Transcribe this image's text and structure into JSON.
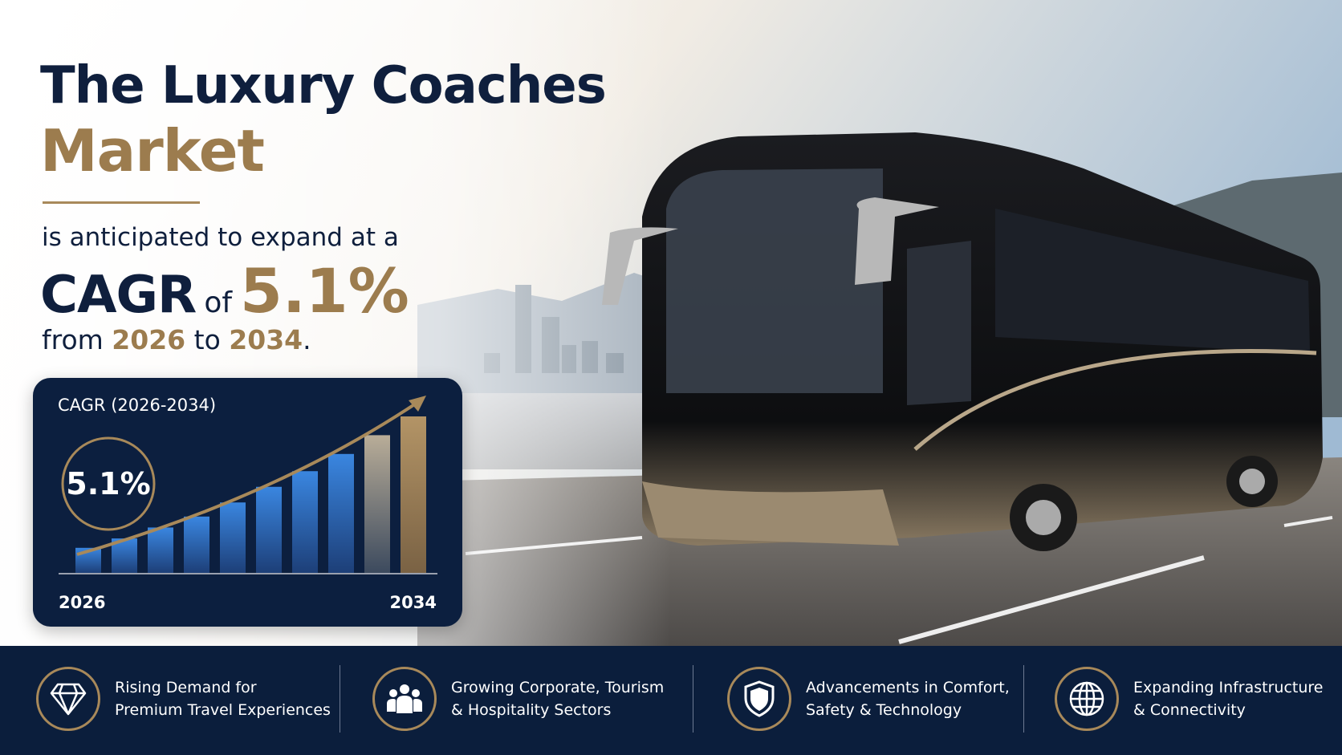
{
  "hero": {
    "title_line1": "The Luxury Coaches",
    "title_line2": "Market",
    "subtitle_line1": "is anticipated to expand at a",
    "cagr_label": "CAGR",
    "of_word": "of",
    "cagr_value": "5.1%",
    "from_word": "from",
    "start_year": "2026",
    "to_word": "to",
    "end_year": "2034",
    "period": "."
  },
  "card": {
    "title": "CAGR (2026-2034)",
    "badge_value": "5.1%",
    "start_label": "2026",
    "end_label": "2034",
    "bar_levels": [
      0.16,
      0.22,
      0.29,
      0.36,
      0.45,
      0.55,
      0.65,
      0.76,
      0.88,
      1.0
    ],
    "colors": {
      "blue": "#3a7fd6",
      "gold": "#a8895a",
      "navy": "#0c1f3f"
    }
  },
  "features": [
    {
      "icon": "diamond-icon",
      "line1": "Rising Demand for",
      "line2": "Premium Travel Experiences"
    },
    {
      "icon": "people-icon",
      "line1": "Growing Corporate, Tourism",
      "line2": "& Hospitality Sectors"
    },
    {
      "icon": "shield-icon",
      "line1": "Advancements in Comfort,",
      "line2": "Safety & Technology"
    },
    {
      "icon": "globe-icon",
      "line1": "Expanding Infrastructure",
      "line2": "& Connectivity"
    }
  ]
}
